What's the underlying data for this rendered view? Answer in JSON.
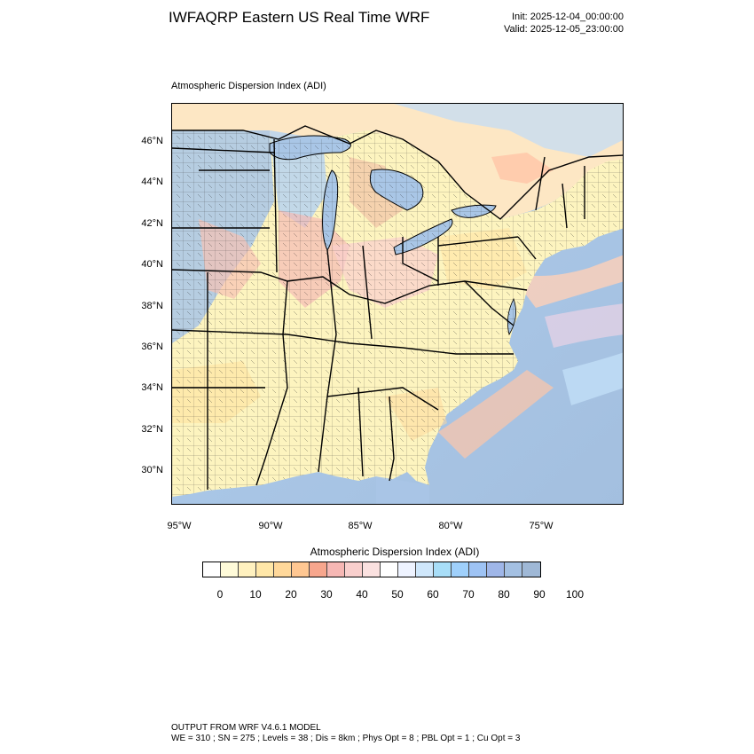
{
  "header": {
    "title": "IWFAQRP Eastern US Real Time WRF",
    "init": "Init: 2025-12-04_00:00:00",
    "valid": "Valid: 2025-12-05_23:00:00"
  },
  "map": {
    "subtitle": "Atmospheric Dispersion Index   (ADI)",
    "lat_labels": [
      "46°N",
      "44°N",
      "42°N",
      "40°N",
      "38°N",
      "36°N",
      "34°N",
      "32°N",
      "30°N"
    ],
    "lon_labels": [
      "95°W",
      "90°W",
      "85°W",
      "80°W",
      "75°W"
    ],
    "water_color": "#a9c6e6",
    "land_base_color": "#fdf4bf"
  },
  "colorbar": {
    "title": "Atmospheric Dispersion Index  (ADI)",
    "colors": [
      "#ffffff",
      "#fffbd9",
      "#fff1bf",
      "#ffe7a8",
      "#ffd89a",
      "#ffc792",
      "#f7a68d",
      "#f6b7b4",
      "#f9cfcd",
      "#fbe1e0",
      "#ffffff",
      "#eef3ff",
      "#cfe7fb",
      "#a8def8",
      "#9fd0fb",
      "#9ec3f4",
      "#9fb6e8",
      "#a4c0e2",
      "#9fb8d6"
    ],
    "tick_labels": [
      "0",
      "10",
      "20",
      "30",
      "40",
      "50",
      "60",
      "70",
      "80",
      "90",
      "100"
    ]
  },
  "footer": {
    "line1": "OUTPUT FROM WRF V4.6.1 MODEL",
    "line2": "WE = 310 ; SN = 275 ; Levels = 38 ; Dis = 8km ; Phys Opt = 8 ; PBL Opt = 1 ; Cu Opt = 3"
  }
}
